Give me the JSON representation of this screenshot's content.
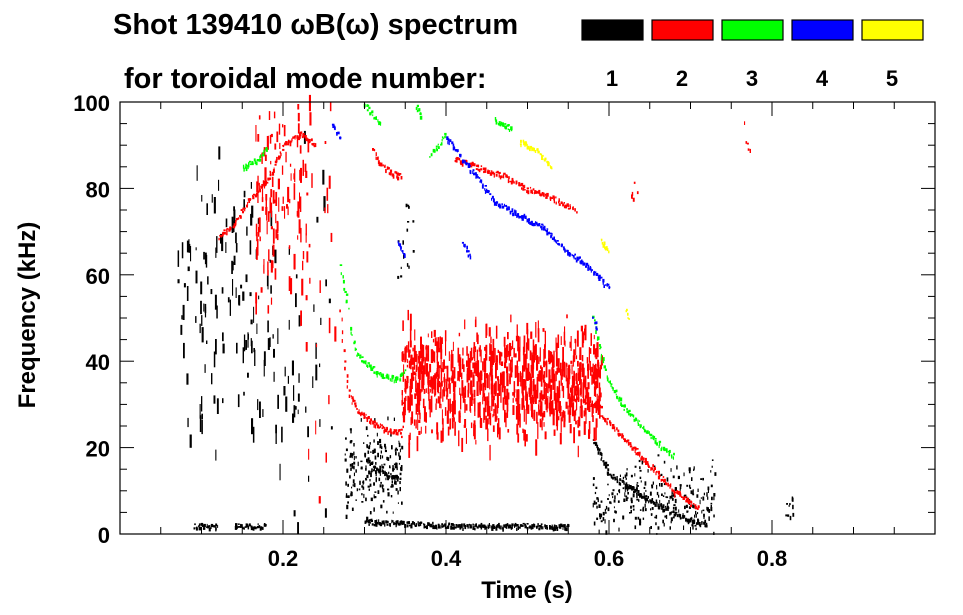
{
  "chart_data": {
    "type": "heatmap",
    "title_line1": "Shot 139410 ωB(ω) spectrum",
    "title_line2": "for toroidal mode number:",
    "xlabel": "Time (s)",
    "ylabel": "Frequency (kHz)",
    "xlim": [
      0.0,
      1.0
    ],
    "ylim": [
      0,
      100
    ],
    "x_ticks": [
      0.2,
      0.4,
      0.6,
      0.8
    ],
    "x_tick_labels": [
      "0.2",
      "0.4",
      "0.6",
      "0.8"
    ],
    "y_ticks": [
      0,
      20,
      40,
      60,
      80,
      100
    ],
    "y_tick_labels": [
      "0",
      "20",
      "40",
      "60",
      "80",
      "100"
    ],
    "legend": [
      {
        "label": "1",
        "color": "#000000"
      },
      {
        "label": "2",
        "color": "#ff0000"
      },
      {
        "label": "3",
        "color": "#00ff00"
      },
      {
        "label": "4",
        "color": "#0000ff"
      },
      {
        "label": "5",
        "color": "#ffff00"
      }
    ],
    "features": [
      {
        "mode": 1,
        "kind": "band",
        "t0": 0.07,
        "t1": 0.19,
        "f_center": 55,
        "f_spread": 15,
        "density": 130,
        "streaks": true
      },
      {
        "mode": 1,
        "kind": "band",
        "t0": 0.19,
        "t1": 0.22,
        "f_center": 28,
        "f_spread": 20,
        "density": 25,
        "streaks": true
      },
      {
        "mode": 1,
        "kind": "band",
        "t0": 0.225,
        "t1": 0.26,
        "f_center": 45,
        "f_spread": 40,
        "density": 25,
        "streaks": true
      },
      {
        "mode": 1,
        "kind": "band",
        "t0": 0.275,
        "t1": 0.345,
        "f_center": 14,
        "f_spread": 5,
        "density": 200,
        "streaks": false
      },
      {
        "mode": 1,
        "kind": "band",
        "t0": 0.58,
        "t1": 0.73,
        "f_center": 8,
        "f_spread": 4,
        "density": 260,
        "streaks": false
      },
      {
        "mode": 1,
        "kind": "line",
        "pts": [
          [
            0.3,
            18
          ],
          [
            0.315,
            15
          ],
          [
            0.33,
            14
          ],
          [
            0.345,
            13
          ]
        ]
      },
      {
        "mode": 1,
        "kind": "line",
        "pts": [
          [
            0.58,
            22
          ],
          [
            0.6,
            14
          ],
          [
            0.64,
            9
          ],
          [
            0.68,
            5
          ],
          [
            0.72,
            2
          ]
        ]
      },
      {
        "mode": 1,
        "kind": "line",
        "pts": [
          [
            0.09,
            2
          ],
          [
            0.12,
            2
          ]
        ]
      },
      {
        "mode": 1,
        "kind": "line",
        "pts": [
          [
            0.14,
            2
          ],
          [
            0.18,
            2
          ]
        ]
      },
      {
        "mode": 1,
        "kind": "line",
        "pts": [
          [
            0.3,
            3
          ],
          [
            0.42,
            2
          ],
          [
            0.55,
            2
          ]
        ]
      },
      {
        "mode": 1,
        "kind": "band",
        "t0": 0.815,
        "t1": 0.825,
        "f_center": 4,
        "f_spread": 3,
        "density": 10,
        "streaks": false
      },
      {
        "mode": 1,
        "kind": "band",
        "t0": 0.34,
        "t1": 0.36,
        "f_center": 68,
        "f_spread": 5,
        "density": 15,
        "streaks": false
      },
      {
        "mode": 2,
        "kind": "line",
        "pts": [
          [
            0.12,
            69
          ],
          [
            0.14,
            72
          ],
          [
            0.16,
            78
          ],
          [
            0.18,
            82
          ],
          [
            0.2,
            90
          ],
          [
            0.22,
            93
          ],
          [
            0.24,
            90
          ]
        ]
      },
      {
        "mode": 2,
        "kind": "band",
        "t0": 0.165,
        "t1": 0.235,
        "f_center": 82,
        "f_spread": 14,
        "density": 140,
        "streaks": true
      },
      {
        "mode": 2,
        "kind": "band",
        "t0": 0.23,
        "t1": 0.27,
        "f_center": 40,
        "f_spread": 40,
        "density": 30,
        "streaks": true
      },
      {
        "mode": 2,
        "kind": "line",
        "pts": [
          [
            0.27,
            52
          ],
          [
            0.275,
            40
          ],
          [
            0.28,
            33
          ],
          [
            0.29,
            29
          ],
          [
            0.31,
            26
          ],
          [
            0.33,
            24
          ],
          [
            0.345,
            24
          ]
        ]
      },
      {
        "mode": 2,
        "kind": "line",
        "pts": [
          [
            0.345,
            23
          ],
          [
            0.35,
            35
          ],
          [
            0.355,
            45
          ]
        ]
      },
      {
        "mode": 2,
        "kind": "line",
        "pts": [
          [
            0.31,
            89
          ],
          [
            0.32,
            86
          ],
          [
            0.33,
            84
          ],
          [
            0.345,
            83
          ]
        ]
      },
      {
        "mode": 2,
        "kind": "band",
        "t0": 0.345,
        "t1": 0.59,
        "f_center": 35,
        "f_spread": 6,
        "density": 900,
        "streaks": true
      },
      {
        "mode": 2,
        "kind": "line",
        "pts": [
          [
            0.41,
            87
          ],
          [
            0.44,
            85
          ],
          [
            0.47,
            83
          ],
          [
            0.5,
            80
          ],
          [
            0.53,
            78
          ],
          [
            0.56,
            75
          ]
        ]
      },
      {
        "mode": 2,
        "kind": "line",
        "pts": [
          [
            0.59,
            28
          ],
          [
            0.62,
            22
          ],
          [
            0.65,
            16
          ],
          [
            0.68,
            10
          ],
          [
            0.71,
            6
          ]
        ]
      },
      {
        "mode": 2,
        "kind": "line",
        "pts": [
          [
            0.55,
            32
          ],
          [
            0.57,
            31
          ],
          [
            0.59,
            30
          ]
        ]
      },
      {
        "mode": 2,
        "kind": "band",
        "t0": 0.625,
        "t1": 0.635,
        "f_center": 81,
        "f_spread": 2,
        "density": 6,
        "streaks": false
      },
      {
        "mode": 2,
        "kind": "band",
        "t0": 0.765,
        "t1": 0.775,
        "f_center": 91,
        "f_spread": 2,
        "density": 5,
        "streaks": false
      },
      {
        "mode": 3,
        "kind": "line",
        "pts": [
          [
            0.15,
            85
          ],
          [
            0.17,
            87
          ],
          [
            0.18,
            90
          ]
        ]
      },
      {
        "mode": 3,
        "kind": "line",
        "pts": [
          [
            0.3,
            100
          ],
          [
            0.31,
            97
          ],
          [
            0.32,
            95
          ]
        ]
      },
      {
        "mode": 3,
        "kind": "line",
        "pts": [
          [
            0.36,
            100
          ],
          [
            0.37,
            97
          ]
        ]
      },
      {
        "mode": 3,
        "kind": "line",
        "pts": [
          [
            0.38,
            88
          ],
          [
            0.39,
            90
          ],
          [
            0.4,
            93
          ]
        ]
      },
      {
        "mode": 3,
        "kind": "line",
        "pts": [
          [
            0.282,
            48
          ],
          [
            0.29,
            42
          ],
          [
            0.3,
            40
          ],
          [
            0.32,
            37
          ],
          [
            0.34,
            36
          ],
          [
            0.35,
            38
          ]
        ]
      },
      {
        "mode": 3,
        "kind": "line",
        "pts": [
          [
            0.27,
            62
          ],
          [
            0.275,
            56
          ],
          [
            0.28,
            52
          ]
        ]
      },
      {
        "mode": 3,
        "kind": "line",
        "pts": [
          [
            0.58,
            50
          ],
          [
            0.59,
            42
          ],
          [
            0.6,
            35
          ],
          [
            0.62,
            29
          ],
          [
            0.64,
            25
          ],
          [
            0.66,
            21
          ],
          [
            0.68,
            18
          ]
        ]
      },
      {
        "mode": 3,
        "kind": "line",
        "pts": [
          [
            0.46,
            96
          ],
          [
            0.48,
            94
          ]
        ]
      },
      {
        "mode": 4,
        "kind": "line",
        "pts": [
          [
            0.26,
            95
          ],
          [
            0.27,
            92
          ]
        ]
      },
      {
        "mode": 4,
        "kind": "line",
        "pts": [
          [
            0.4,
            92
          ],
          [
            0.42,
            87
          ],
          [
            0.44,
            82
          ],
          [
            0.46,
            77
          ],
          [
            0.48,
            75
          ],
          [
            0.5,
            73
          ],
          [
            0.52,
            71
          ],
          [
            0.54,
            67
          ],
          [
            0.56,
            64
          ],
          [
            0.58,
            61
          ],
          [
            0.6,
            57
          ]
        ]
      },
      {
        "mode": 4,
        "kind": "line",
        "pts": [
          [
            0.34,
            68
          ],
          [
            0.35,
            64
          ]
        ]
      },
      {
        "mode": 4,
        "kind": "line",
        "pts": [
          [
            0.42,
            68
          ],
          [
            0.43,
            64
          ]
        ]
      },
      {
        "mode": 4,
        "kind": "line",
        "pts": [
          [
            0.58,
            50
          ],
          [
            0.585,
            47
          ]
        ]
      },
      {
        "mode": 5,
        "kind": "line",
        "pts": [
          [
            0.49,
            91
          ],
          [
            0.51,
            89
          ],
          [
            0.53,
            85
          ]
        ]
      },
      {
        "mode": 5,
        "kind": "line",
        "pts": [
          [
            0.59,
            68
          ],
          [
            0.6,
            66
          ]
        ]
      },
      {
        "mode": 5,
        "kind": "line",
        "pts": [
          [
            0.62,
            52
          ],
          [
            0.625,
            50
          ]
        ]
      }
    ]
  }
}
